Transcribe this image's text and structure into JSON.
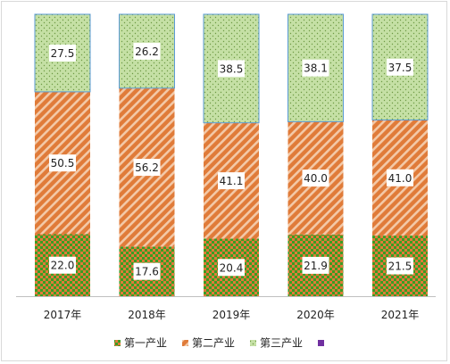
{
  "chart_data": {
    "type": "bar",
    "stacked": true,
    "percent_stacked": true,
    "categories": [
      "2017年",
      "2018年",
      "2019年",
      "2020年",
      "2021年"
    ],
    "series": [
      {
        "name": "第一产业",
        "values": [
          22.0,
          17.6,
          20.4,
          21.9,
          21.5
        ],
        "color": "#3a9d23",
        "pattern": "checker-orange"
      },
      {
        "name": "第二产业",
        "values": [
          50.5,
          56.2,
          41.1,
          40.0,
          41.0
        ],
        "color": "#e07b39",
        "pattern": "diagonal-stripes"
      },
      {
        "name": "第三产业",
        "values": [
          27.5,
          26.2,
          38.5,
          38.1,
          37.5
        ],
        "color": "#c5e0a5",
        "pattern": "dots"
      },
      {
        "name": "",
        "values": [
          0,
          0,
          0,
          0,
          0
        ],
        "color": "#7030a0",
        "pattern": "solid"
      }
    ],
    "ylim": [
      0,
      100
    ],
    "grid": false,
    "legend": "bottom",
    "data_labels": true
  }
}
